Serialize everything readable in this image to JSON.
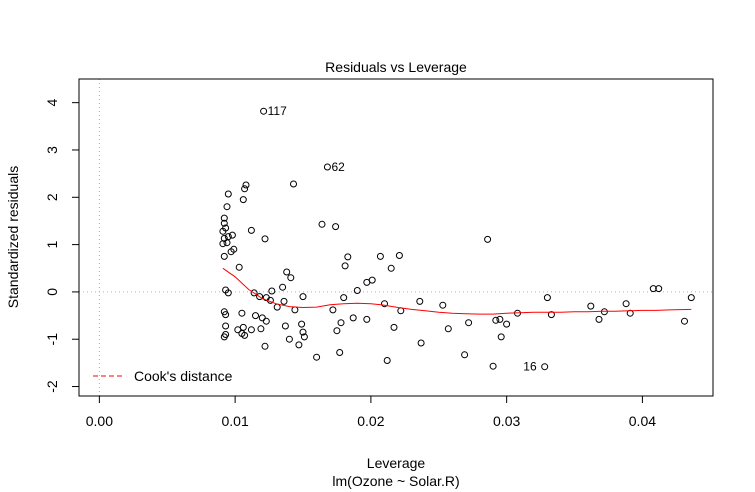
{
  "chart_data": {
    "type": "scatter",
    "title": "Residuals vs Leverage",
    "xlabel": "Leverage",
    "xsublabel": "lm(Ozone ~ Solar.R)",
    "ylabel": "Standardized residuals",
    "xlim": [
      -0.0015,
      0.0452
    ],
    "ylim": [
      -2.2,
      4.5
    ],
    "xticks": [
      0.0,
      0.01,
      0.02,
      0.03,
      0.04
    ],
    "xtick_labels": [
      "0.00",
      "0.01",
      "0.02",
      "0.03",
      "0.04"
    ],
    "yticks": [
      -2,
      -1,
      0,
      1,
      2,
      3,
      4
    ],
    "ytick_labels": [
      "-2",
      "-1",
      "0",
      "1",
      "2",
      "3",
      "4"
    ],
    "grid": false,
    "legend": {
      "position": "bottom-left",
      "label": "Cook's distance",
      "line_style": "dashed",
      "color": "#ff0000"
    },
    "reference_lines": {
      "x": 0,
      "y": 0,
      "style": "dotted",
      "color": "#b0b0b0"
    },
    "series": [
      {
        "values": [
          [
            0.0121,
            3.82
          ],
          [
            0.0168,
            2.64
          ],
          [
            0.0328,
            -1.58
          ],
          [
            0.0143,
            2.28
          ],
          [
            0.0108,
            2.26
          ],
          [
            0.0107,
            2.18
          ],
          [
            0.0095,
            2.07
          ],
          [
            0.0106,
            1.95
          ],
          [
            0.0094,
            1.8
          ],
          [
            0.0092,
            1.56
          ],
          [
            0.0092,
            1.45
          ],
          [
            0.0093,
            1.35
          ],
          [
            0.0091,
            1.28
          ],
          [
            0.0095,
            1.17
          ],
          [
            0.0092,
            1.13
          ],
          [
            0.0091,
            1.02
          ],
          [
            0.0094,
            1.04
          ],
          [
            0.0098,
            1.2
          ],
          [
            0.0099,
            0.9
          ],
          [
            0.0097,
            0.85
          ],
          [
            0.0092,
            0.75
          ],
          [
            0.0112,
            1.3
          ],
          [
            0.0122,
            1.12
          ],
          [
            0.0164,
            1.43
          ],
          [
            0.0174,
            1.38
          ],
          [
            0.0286,
            1.11
          ],
          [
            0.0103,
            0.52
          ],
          [
            0.0138,
            0.42
          ],
          [
            0.0141,
            0.3
          ],
          [
            0.0183,
            0.74
          ],
          [
            0.0207,
            0.75
          ],
          [
            0.0221,
            0.77
          ],
          [
            0.0215,
            0.5
          ],
          [
            0.0181,
            0.55
          ],
          [
            0.019,
            0.03
          ],
          [
            0.0201,
            0.25
          ],
          [
            0.0197,
            0.2
          ],
          [
            0.0135,
            0.1
          ],
          [
            0.0127,
            0.02
          ],
          [
            0.0093,
            0.04
          ],
          [
            0.0095,
            -0.02
          ],
          [
            0.0114,
            -0.02
          ],
          [
            0.0118,
            -0.1
          ],
          [
            0.0123,
            -0.12
          ],
          [
            0.0126,
            -0.18
          ],
          [
            0.0136,
            -0.2
          ],
          [
            0.015,
            -0.1
          ],
          [
            0.018,
            -0.12
          ],
          [
            0.021,
            -0.25
          ],
          [
            0.0222,
            -0.4
          ],
          [
            0.0236,
            -0.2
          ],
          [
            0.0253,
            -0.28
          ],
          [
            0.0172,
            -0.38
          ],
          [
            0.0144,
            -0.38
          ],
          [
            0.0131,
            -0.32
          ],
          [
            0.0092,
            -0.42
          ],
          [
            0.0093,
            -0.48
          ],
          [
            0.0105,
            -0.45
          ],
          [
            0.0115,
            -0.5
          ],
          [
            0.012,
            -0.55
          ],
          [
            0.0123,
            -0.62
          ],
          [
            0.0119,
            -0.78
          ],
          [
            0.0112,
            -0.8
          ],
          [
            0.0106,
            -0.75
          ],
          [
            0.0102,
            -0.8
          ],
          [
            0.0105,
            -0.88
          ],
          [
            0.0107,
            -0.92
          ],
          [
            0.0093,
            -0.9
          ],
          [
            0.0092,
            -0.95
          ],
          [
            0.0093,
            -0.72
          ],
          [
            0.0137,
            -0.72
          ],
          [
            0.0149,
            -0.68
          ],
          [
            0.015,
            -0.85
          ],
          [
            0.0151,
            -0.95
          ],
          [
            0.014,
            -1.0
          ],
          [
            0.0147,
            -1.12
          ],
          [
            0.0122,
            -1.15
          ],
          [
            0.016,
            -1.38
          ],
          [
            0.0177,
            -1.28
          ],
          [
            0.0187,
            -0.55
          ],
          [
            0.0178,
            -0.65
          ],
          [
            0.0175,
            -0.82
          ],
          [
            0.0197,
            -0.58
          ],
          [
            0.0217,
            -0.75
          ],
          [
            0.0237,
            -1.08
          ],
          [
            0.0212,
            -1.45
          ],
          [
            0.0257,
            -0.78
          ],
          [
            0.0272,
            -0.65
          ],
          [
            0.0269,
            -1.33
          ],
          [
            0.029,
            -1.57
          ],
          [
            0.0292,
            -0.6
          ],
          [
            0.0295,
            -0.58
          ],
          [
            0.03,
            -0.68
          ],
          [
            0.0296,
            -0.95
          ],
          [
            0.0308,
            -0.45
          ],
          [
            0.033,
            -0.12
          ],
          [
            0.0333,
            -0.48
          ],
          [
            0.0362,
            -0.3
          ],
          [
            0.0368,
            -0.58
          ],
          [
            0.0372,
            -0.42
          ],
          [
            0.0388,
            -0.25
          ],
          [
            0.0391,
            -0.45
          ],
          [
            0.0408,
            0.07
          ],
          [
            0.0412,
            0.07
          ],
          [
            0.0431,
            -0.62
          ],
          [
            0.0436,
            -0.12
          ]
        ]
      }
    ],
    "smooth_line": {
      "color": "#ff0000",
      "values": [
        [
          0.0091,
          0.5
        ],
        [
          0.01,
          0.32
        ],
        [
          0.011,
          0.05
        ],
        [
          0.012,
          -0.14
        ],
        [
          0.013,
          -0.25
        ],
        [
          0.014,
          -0.31
        ],
        [
          0.015,
          -0.33
        ],
        [
          0.016,
          -0.32
        ],
        [
          0.017,
          -0.27
        ],
        [
          0.018,
          -0.25
        ],
        [
          0.019,
          -0.24
        ],
        [
          0.02,
          -0.25
        ],
        [
          0.021,
          -0.28
        ],
        [
          0.022,
          -0.33
        ],
        [
          0.023,
          -0.37
        ],
        [
          0.024,
          -0.4
        ],
        [
          0.025,
          -0.43
        ],
        [
          0.026,
          -0.45
        ],
        [
          0.027,
          -0.46
        ],
        [
          0.028,
          -0.47
        ],
        [
          0.029,
          -0.47
        ],
        [
          0.03,
          -0.45
        ],
        [
          0.031,
          -0.44
        ],
        [
          0.032,
          -0.43
        ],
        [
          0.033,
          -0.43
        ],
        [
          0.034,
          -0.43
        ],
        [
          0.035,
          -0.42
        ],
        [
          0.036,
          -0.42
        ],
        [
          0.037,
          -0.41
        ],
        [
          0.038,
          -0.41
        ],
        [
          0.039,
          -0.4
        ],
        [
          0.04,
          -0.39
        ],
        [
          0.041,
          -0.39
        ],
        [
          0.042,
          -0.38
        ],
        [
          0.0436,
          -0.37
        ]
      ]
    },
    "annotations": [
      {
        "label": "117",
        "point": [
          0.0121,
          3.82
        ],
        "side": "right"
      },
      {
        "label": "62",
        "point": [
          0.0168,
          2.64
        ],
        "side": "right"
      },
      {
        "label": "16",
        "point": [
          0.0328,
          -1.58
        ],
        "side": "left"
      }
    ]
  }
}
